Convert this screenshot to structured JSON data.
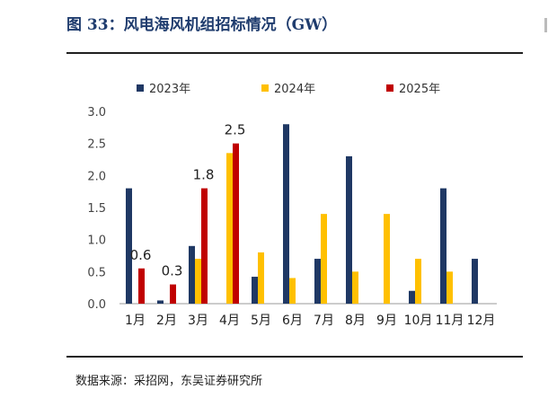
{
  "page_title": "图 33：风电海风机组招标情况（GW）",
  "source_note": "数据来源：采招网，东吴证券研究所",
  "chart_data": {
    "type": "bar",
    "categories": [
      "1月",
      "2月",
      "3月",
      "4月",
      "5月",
      "6月",
      "7月",
      "8月",
      "9月",
      "10月",
      "11月",
      "12月"
    ],
    "series": [
      {
        "name": "2023年",
        "color": "#1f3864",
        "values": [
          1.8,
          0.05,
          0.9,
          0,
          0.42,
          2.8,
          0.7,
          2.3,
          0,
          0.2,
          1.8,
          0.7
        ]
      },
      {
        "name": "2024年",
        "color": "#ffc000",
        "values": [
          0,
          0,
          0.7,
          2.35,
          0.8,
          0.4,
          1.4,
          0.5,
          1.4,
          0.7,
          0.5,
          0
        ]
      },
      {
        "name": "2025年",
        "color": "#c00000",
        "values": [
          0.55,
          0.3,
          1.8,
          2.5,
          0,
          0,
          0,
          0,
          0,
          0,
          0,
          0
        ]
      }
    ],
    "data_labels": [
      {
        "series": 2,
        "index": 0,
        "text": "0.6"
      },
      {
        "series": 2,
        "index": 1,
        "text": "0.3"
      },
      {
        "series": 2,
        "index": 2,
        "text": "1.8"
      },
      {
        "series": 2,
        "index": 3,
        "text": "2.5"
      }
    ],
    "yticks": [
      "0.0",
      "0.5",
      "1.0",
      "1.5",
      "2.0",
      "2.5",
      "3.0"
    ],
    "ylim": [
      0,
      3.0
    ],
    "legend": "top",
    "grid": false
  }
}
